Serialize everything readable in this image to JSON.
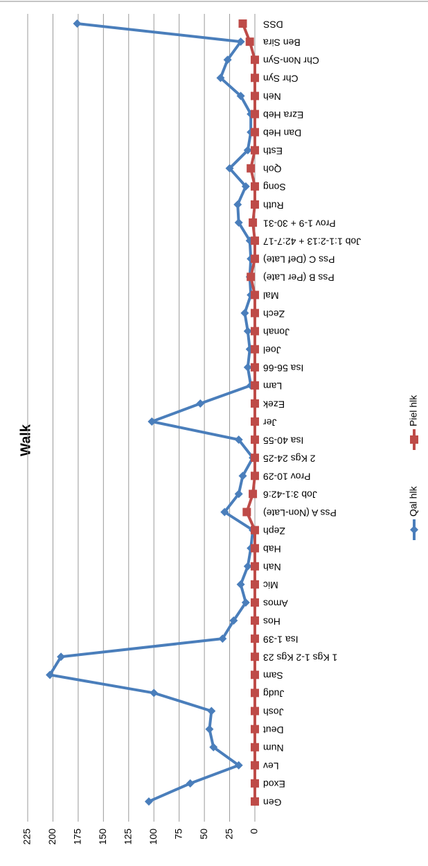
{
  "chart_data": {
    "type": "line",
    "title": "Walk",
    "categories": [
      "Gen",
      "Exod",
      "Lev",
      "Num",
      "Deut",
      "Josh",
      "Judg",
      "Sam",
      "1 Kgs 1-2 Kgs 23",
      "Isa 1-39",
      "Hos",
      "Amos",
      "Mic",
      "Nah",
      "Hab",
      "Zeph",
      "Pss A (Non-Late)",
      "Job 3:1-42:6",
      "Prov 10-29",
      "2 Kgs 24-25",
      "Isa 40-55",
      "Jer",
      "Ezek",
      "Lam",
      "Isa 56-66",
      "Joel",
      "Jonah",
      "Zech",
      "Mal",
      "Pss B (Per Late)",
      "Pss C (Def Late)",
      "Job 1:1-2:13 + 42:7-17",
      "Prov 1-9 + 30-31",
      "Ruth",
      "Song",
      "Qoh",
      "Esth",
      "Dan Heb",
      "Ezra Heb",
      "Neh",
      "Chr Syn",
      "Chr Non-Syn",
      "Ben Sira",
      "DSS"
    ],
    "series": [
      {
        "name": "Qal hlk",
        "color": "#4a7ebb",
        "marker": "diamond",
        "values": [
          105,
          64,
          16,
          41,
          45,
          43,
          100,
          203,
          192,
          32,
          21,
          9,
          14,
          7,
          4,
          2,
          30,
          16,
          12,
          2,
          16,
          102,
          54,
          4,
          7,
          5,
          7,
          10,
          4,
          5,
          4,
          5,
          16,
          17,
          9,
          25,
          7,
          4,
          4,
          14,
          34,
          27,
          14,
          176
        ]
      },
      {
        "name": "Piel hlk",
        "color": "#be4b48",
        "marker": "square",
        "values": [
          0,
          0,
          0,
          0,
          0,
          0,
          0,
          0,
          0,
          0,
          0,
          0,
          0,
          0,
          0,
          0,
          8,
          2,
          0,
          0,
          0,
          0,
          0,
          0,
          0,
          0,
          0,
          0,
          0,
          4,
          0,
          0,
          2,
          0,
          0,
          4,
          0,
          0,
          0,
          0,
          0,
          0,
          5,
          12
        ]
      }
    ],
    "ylim": [
      0,
      225
    ],
    "yticks": [
      0,
      25,
      50,
      75,
      100,
      125,
      150,
      175,
      200,
      225
    ],
    "grid": true
  }
}
